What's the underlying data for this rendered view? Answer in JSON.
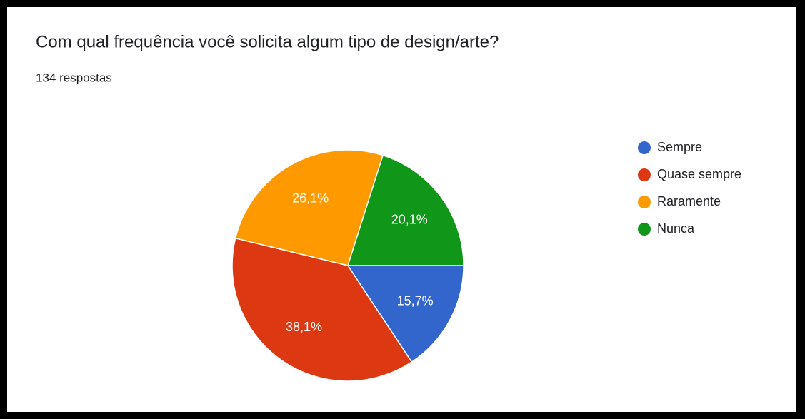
{
  "chart_data": {
    "type": "pie",
    "title": "Com qual frequência você solicita algum tipo de design/arte?",
    "subtitle": "134 respostas",
    "categories": [
      "Sempre",
      "Quase sempre",
      "Raramente",
      "Nunca"
    ],
    "values": [
      15.7,
      38.1,
      26.1,
      20.1
    ],
    "value_labels": [
      "15,7%",
      "38,1%",
      "26,1%",
      "20,1%"
    ],
    "colors": [
      "#3366cc",
      "#dc3912",
      "#ff9900",
      "#109618"
    ],
    "legend": "right"
  }
}
